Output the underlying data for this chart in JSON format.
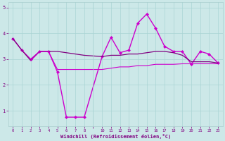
{
  "xlabel": "Windchill (Refroidissement éolien,°C)",
  "bg_color": "#cce8e8",
  "line_color_main": "#cc00cc",
  "line_color_dark": "#800080",
  "xtick_labels": [
    "0",
    "1",
    "2",
    "3",
    "4",
    "5",
    "6",
    "7",
    "8",
    "",
    "10",
    "11",
    "12",
    "13",
    "14",
    "15",
    "16",
    "17",
    "18",
    "19",
    "20",
    "21",
    "22",
    "23"
  ],
  "xtick_positions": [
    0,
    1,
    2,
    3,
    4,
    5,
    6,
    7,
    8,
    9,
    10,
    11,
    12,
    13,
    14,
    15,
    16,
    17,
    18,
    19,
    20,
    21,
    22,
    23
  ],
  "yticks": [
    1,
    2,
    3,
    4,
    5
  ],
  "ylim": [
    0.4,
    5.2
  ],
  "xlim": [
    -0.5,
    23.5
  ],
  "series": [
    {
      "x": [
        0,
        1,
        2,
        3,
        4,
        5,
        6,
        7,
        8,
        10,
        11,
        12,
        13,
        14,
        15,
        16,
        17,
        18,
        19,
        20,
        21,
        22,
        23
      ],
      "y": [
        3.8,
        3.35,
        3.0,
        3.3,
        3.3,
        2.5,
        0.75,
        0.75,
        0.75,
        3.1,
        3.85,
        3.25,
        3.35,
        4.4,
        4.75,
        4.2,
        3.5,
        3.3,
        3.3,
        2.8,
        3.3,
        3.2,
        2.85
      ],
      "color": "#cc00cc",
      "lw": 1.0,
      "marker": "D",
      "ms": 2.0
    },
    {
      "x": [
        0,
        1,
        2,
        3,
        4,
        5,
        6,
        7,
        8,
        10,
        11,
        12,
        13,
        14,
        15,
        16,
        17,
        18,
        19,
        20,
        21,
        22,
        23
      ],
      "y": [
        3.8,
        3.35,
        2.95,
        3.3,
        3.3,
        3.3,
        3.25,
        3.2,
        3.15,
        3.1,
        3.15,
        3.15,
        3.2,
        3.2,
        3.25,
        3.3,
        3.3,
        3.25,
        3.15,
        2.9,
        2.9,
        2.9,
        2.85
      ],
      "color": "#800080",
      "lw": 0.9,
      "marker": null,
      "ms": 0
    },
    {
      "x": [
        2,
        3,
        4,
        5,
        6,
        7,
        8,
        10,
        11,
        12,
        13,
        14,
        15,
        16,
        17,
        18,
        19,
        20,
        21,
        22,
        23
      ],
      "y": [
        2.95,
        3.3,
        3.3,
        2.6,
        2.6,
        2.6,
        2.6,
        2.6,
        2.65,
        2.7,
        2.7,
        2.75,
        2.75,
        2.8,
        2.8,
        2.8,
        2.82,
        2.82,
        2.82,
        2.82,
        2.82
      ],
      "color": "#cc00cc",
      "lw": 0.8,
      "marker": null,
      "ms": 0
    }
  ]
}
